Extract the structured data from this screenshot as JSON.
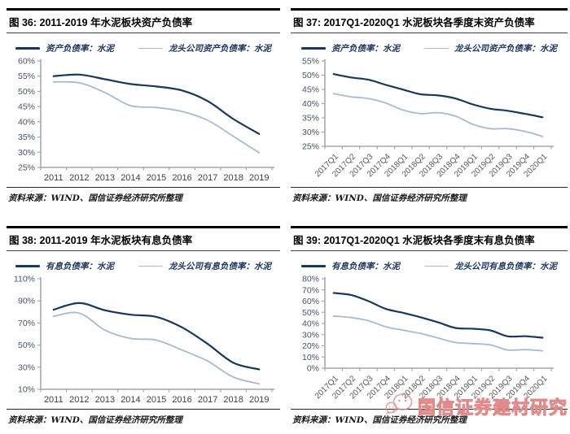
{
  "page": {
    "background": "#ffffff"
  },
  "colors": {
    "primary_line": "#17375E",
    "secondary_line": "#A9B9CE",
    "axis": "#A6A6A6",
    "ytick_label": "#44546A",
    "xtick_label": "#3F3F3F",
    "xtick_rot_label": "#595959",
    "legend_text": "#1F3864",
    "watermark": "#E08A8A"
  },
  "watermark": {
    "text": "国信证券建材研究",
    "icon": "wechat-logo-icon"
  },
  "chart_data": [
    {
      "id": "fig36",
      "type": "line",
      "title": "图 36: 2011-2019 年水泥板块资产负债率",
      "categories": [
        "2011",
        "2012",
        "2013",
        "2014",
        "2015",
        "2016",
        "2017",
        "2018",
        "2019"
      ],
      "series": [
        {
          "name": "资产负债率：水泥",
          "color": "#17375E",
          "width": 2.2,
          "values": [
            55.0,
            55.5,
            54.0,
            52.4,
            51.6,
            50.3,
            46.8,
            40.9,
            36.0
          ]
        },
        {
          "name": "龙头公司资产负债率：水泥",
          "color": "#A9B9CE",
          "width": 1.8,
          "values": [
            53.1,
            52.8,
            49.6,
            45.3,
            44.7,
            43.4,
            40.5,
            35.2,
            29.8
          ]
        }
      ],
      "ylabel": "",
      "xlabel": "",
      "ylim": [
        25,
        60
      ],
      "ytick_step": 5,
      "ytick_suffix": "%",
      "rotate_x_labels": false,
      "grid": false,
      "legend_position": "top",
      "source": "资料来源：WIND、国信证券经济研究所整理"
    },
    {
      "id": "fig37",
      "type": "line",
      "title": "图 37: 2017Q1-2020Q1 水泥板块各季度末资产负债率",
      "categories": [
        "2017Q1",
        "2017Q2",
        "2017Q3",
        "2017Q4",
        "2018Q1",
        "2018Q2",
        "2018Q3",
        "2018Q4",
        "2019Q1",
        "2019Q2",
        "2019Q3",
        "2019Q4",
        "2020Q1"
      ],
      "series": [
        {
          "name": "资产负债率：水泥",
          "color": "#17375E",
          "width": 2.2,
          "values": [
            50.4,
            49.2,
            48.4,
            46.6,
            44.9,
            43.3,
            42.9,
            41.8,
            39.7,
            38.2,
            37.5,
            36.4,
            35.2
          ]
        },
        {
          "name": "龙头公司资产负债率：水泥",
          "color": "#A9B9CE",
          "width": 1.8,
          "values": [
            43.5,
            42.4,
            41.8,
            40.2,
            37.7,
            36.5,
            36.8,
            35.6,
            32.7,
            31.2,
            31.2,
            30.2,
            28.5
          ]
        }
      ],
      "ylabel": "",
      "xlabel": "",
      "ylim": [
        25,
        55
      ],
      "ytick_step": 5,
      "ytick_suffix": "%",
      "rotate_x_labels": true,
      "grid": false,
      "legend_position": "top",
      "source": "资料来源：WIND、国信证券经济研究所整理"
    },
    {
      "id": "fig38",
      "type": "line",
      "title": "图 38: 2011-2019 年水泥板块有息负债率",
      "categories": [
        "2011",
        "2012",
        "2013",
        "2014",
        "2015",
        "2016",
        "2017",
        "2018",
        "2019"
      ],
      "series": [
        {
          "name": "有息负债率：水泥",
          "color": "#17375E",
          "width": 2.2,
          "values": [
            82,
            88,
            81.5,
            77.5,
            75.5,
            66,
            51,
            34,
            28
          ]
        },
        {
          "name": "龙头公司有息负债率：水泥",
          "color": "#A9B9CE",
          "width": 1.8,
          "values": [
            76,
            79,
            63.5,
            56,
            54.5,
            45.5,
            35.5,
            21,
            15
          ]
        }
      ],
      "ylabel": "",
      "xlabel": "",
      "ylim": [
        10,
        110
      ],
      "ytick_step": 20,
      "ytick_suffix": "%",
      "rotate_x_labels": false,
      "grid": false,
      "legend_position": "top",
      "source": "资料来源：WIND、国信证券经济研究所整理"
    },
    {
      "id": "fig39",
      "type": "line",
      "title": "图 39: 2017Q1-2020Q1 水泥板块各季度末有息负债率",
      "categories": [
        "2017Q1",
        "2017Q2",
        "2017Q3",
        "2017Q4",
        "2018Q1",
        "2018Q2",
        "2018Q3",
        "2018Q4",
        "2019Q1",
        "2019Q2",
        "2019Q3",
        "2019Q4",
        "2020Q1"
      ],
      "series": [
        {
          "name": "有息负债率：水泥",
          "color": "#17375E",
          "width": 2.2,
          "values": [
            67.3,
            65.5,
            60.0,
            53.0,
            49.5,
            45.5,
            41.0,
            36.0,
            35.3,
            33.8,
            28.5,
            28.6,
            27.3
          ]
        },
        {
          "name": "龙头公司有息负债率：水泥",
          "color": "#A9B9CE",
          "width": 1.8,
          "values": [
            46.6,
            45.3,
            42.5,
            37.0,
            34.0,
            31.0,
            27.0,
            23.0,
            22.0,
            20.8,
            16.3,
            16.6,
            15.5
          ]
        }
      ],
      "ylabel": "",
      "xlabel": "",
      "ylim": [
        0,
        80
      ],
      "ytick_step": 10,
      "ytick_suffix": "%",
      "rotate_x_labels": true,
      "grid": false,
      "legend_position": "top",
      "source": "资料来源：WIND、国信证券经济研究所整理"
    }
  ]
}
